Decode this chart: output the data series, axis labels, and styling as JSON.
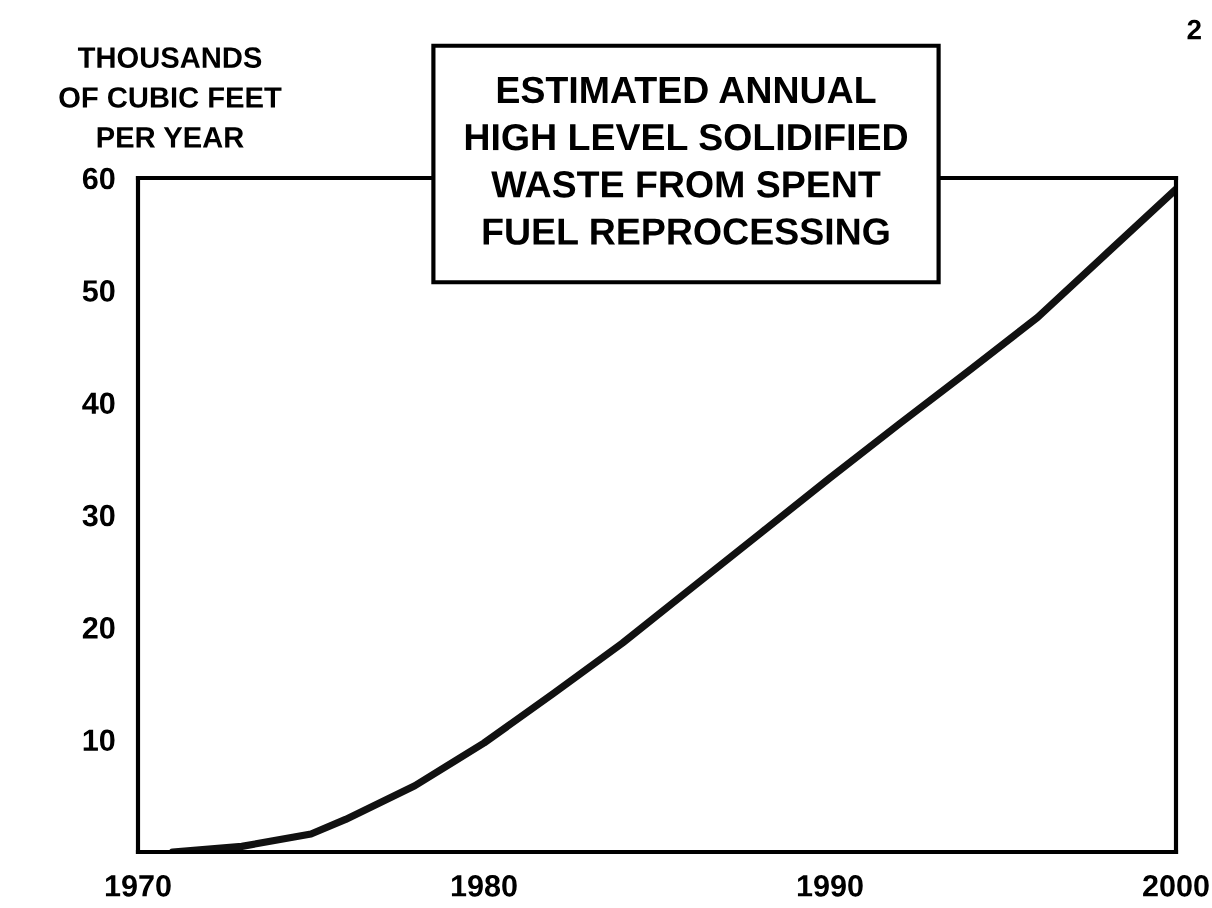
{
  "chart_data": {
    "type": "line",
    "title": "ESTIMATED ANNUAL\nHIGH LEVEL SOLIDIFIED\nWASTE FROM SPENT\nFUEL REPROCESSING",
    "ylabel": "THOUSANDS\nOF CUBIC FEET\nPER YEAR",
    "annotations": [
      "2"
    ],
    "x": [
      1971,
      1973,
      1975,
      1976,
      1978,
      1980,
      1982,
      1984,
      1986,
      1988,
      1990,
      1992,
      1994,
      1996,
      1998,
      2000
    ],
    "series": [
      {
        "color": "#111111",
        "values": [
          0,
          0.5,
          1.6,
          2.9,
          5.9,
          9.7,
          14.1,
          18.6,
          23.5,
          28.4,
          33.3,
          38.1,
          42.8,
          47.6,
          53.3,
          59
        ]
      }
    ],
    "xlim": [
      1970,
      2000
    ],
    "xticks": [
      1970,
      1980,
      1990,
      2000
    ],
    "ylim": [
      0,
      60
    ],
    "yticks": [
      10,
      20,
      30,
      40,
      50,
      60
    ],
    "grid": false,
    "legend": false,
    "marker": "none",
    "line_style": "solid"
  }
}
